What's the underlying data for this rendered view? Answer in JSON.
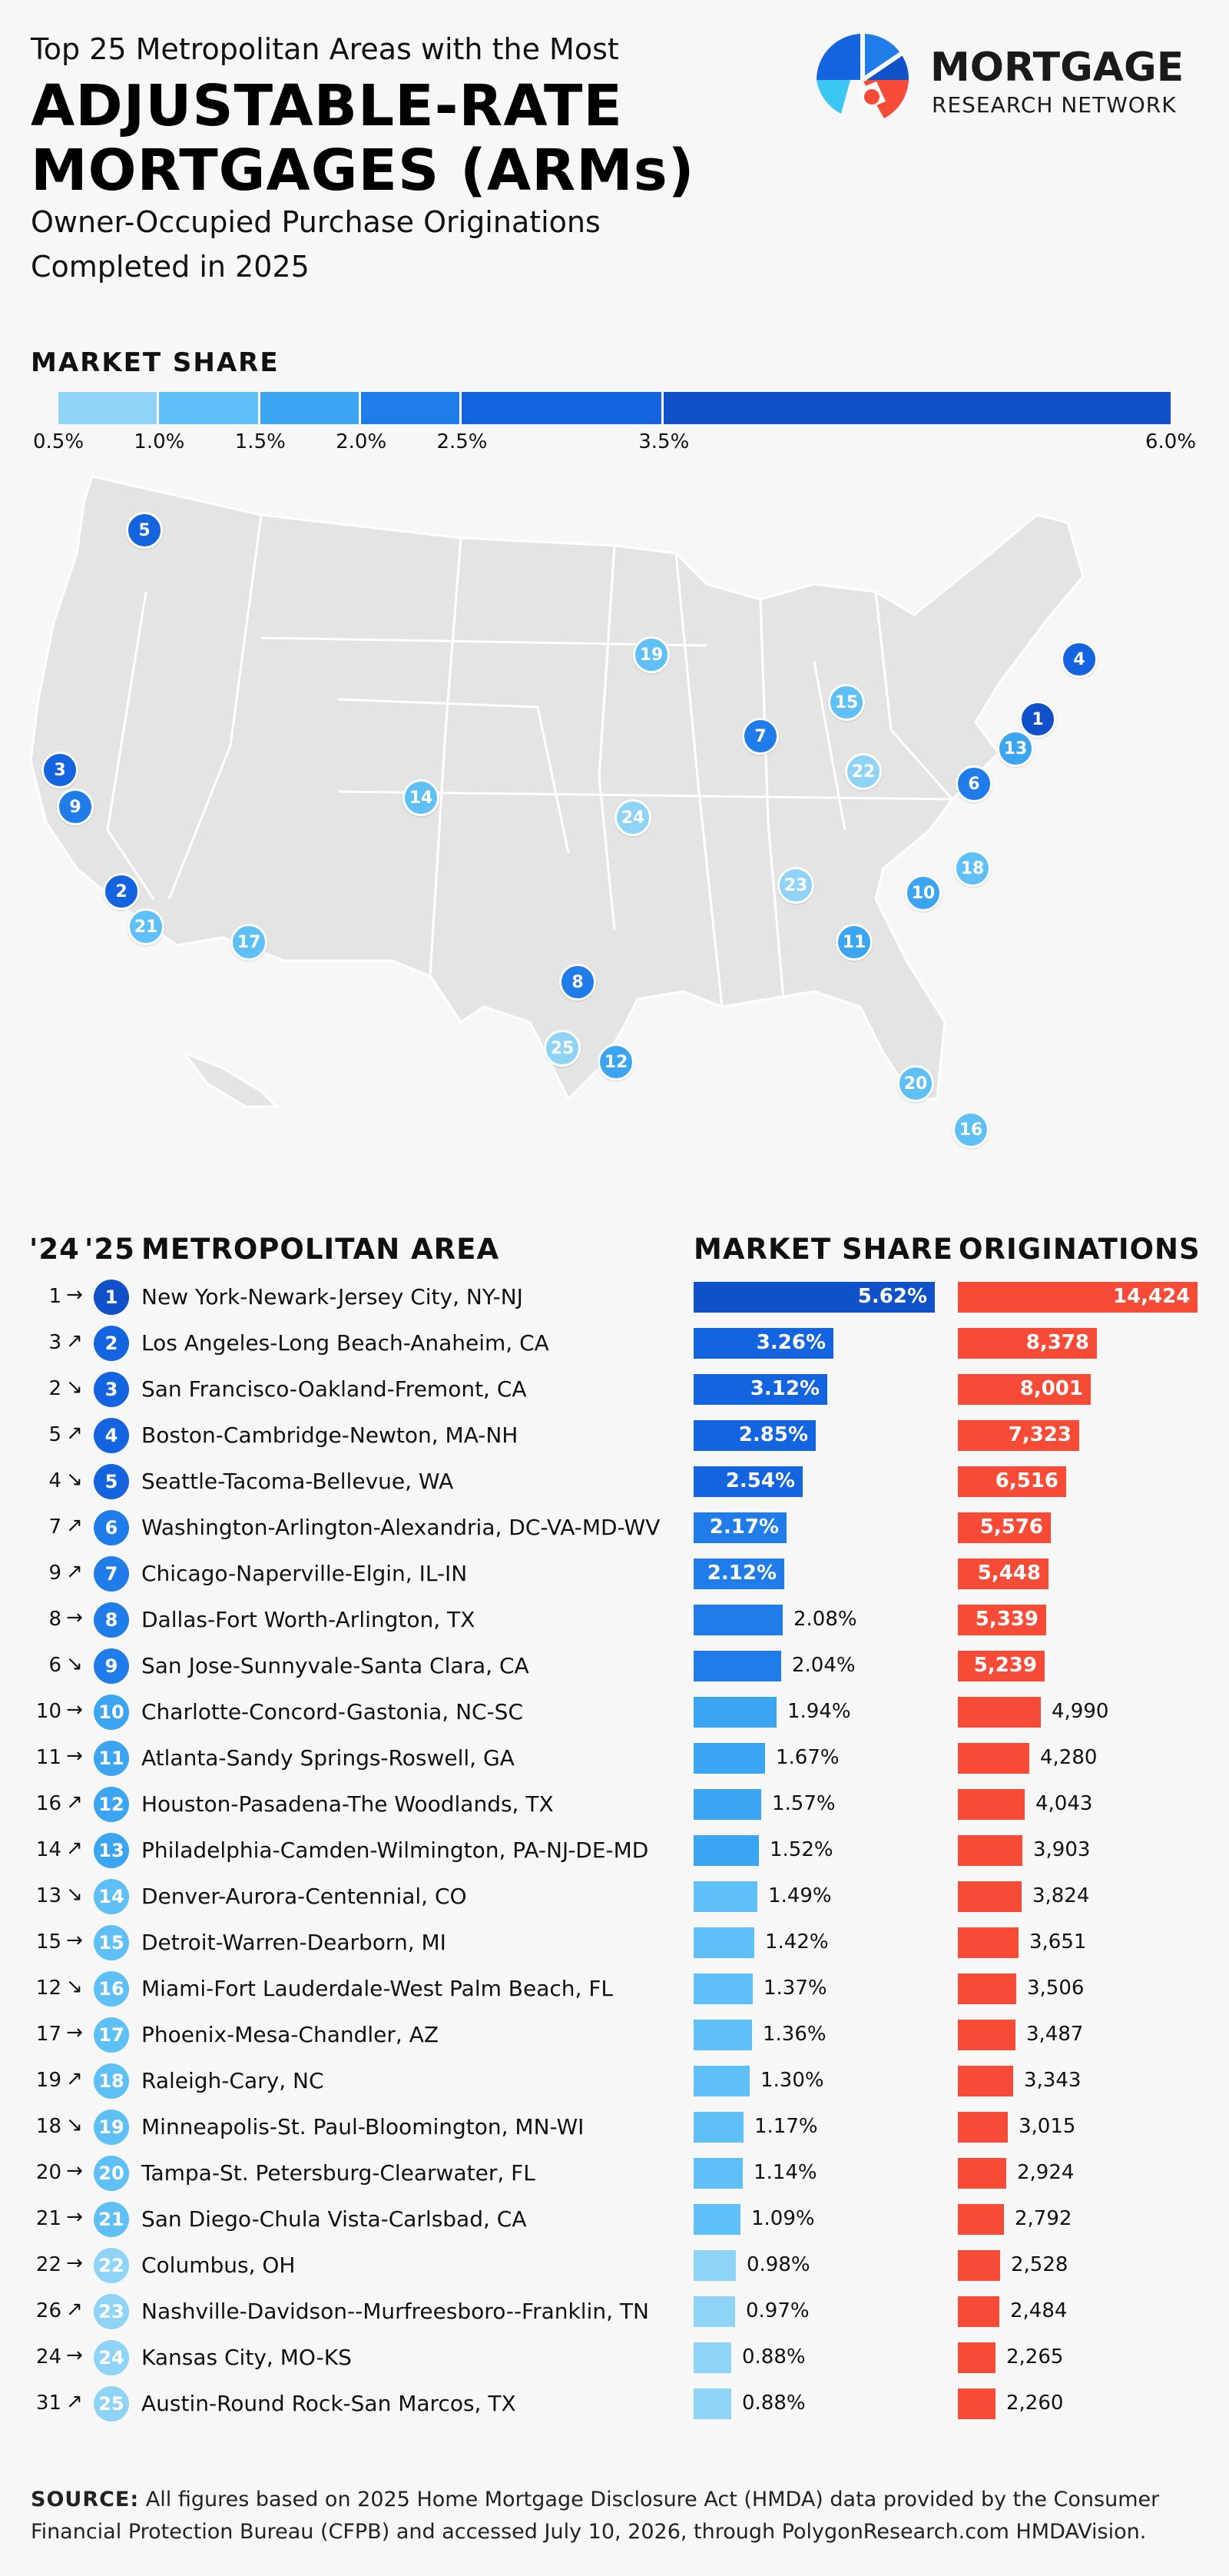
{
  "header": {
    "kicker": "Top 25 Metropolitan Areas with the Most",
    "headline": "ADJUSTABLE-RATE MORTGAGES (ARMs)",
    "subtitle": "Owner-Occupied Purchase Originations Completed in 2025"
  },
  "logo": {
    "line1": "MORTGAGE",
    "line2": "RESEARCH NETWORK"
  },
  "legend": {
    "title": "MARKET SHARE",
    "ticks": [
      "0.5%",
      "1.0%",
      "1.5%",
      "2.0%",
      "2.5%",
      "3.5%",
      "6.0%"
    ],
    "colors": [
      "#8fd3f7",
      "#5ec0f6",
      "#3ca5f2",
      "#1f7ce8",
      "#1463df",
      "#1050c8"
    ]
  },
  "table_headers": {
    "prev_year": "'24",
    "cur_year": "'25",
    "metro": "METROPOLITAN AREA",
    "share": "MARKET SHARE",
    "originations": "ORIGINATIONS"
  },
  "source": {
    "label": "SOURCE:",
    "text": "All figures based on 2025 Home Mortgage Disclosure Act (HMDA) data provided by the Consumer Financial Protection Bureau (CFPB) and accessed July 10, 2026, through PolygonResearch.com HMDAVision."
  },
  "chart_data": {
    "type": "table",
    "rows": [
      {
        "rank": "1",
        "prev": "1",
        "trend": "→",
        "metro": "New York-Newark-Jersey City, NY-NJ",
        "share": 5.62,
        "share_label": "5.62%",
        "originations": 14424,
        "orig_label": "14,424"
      },
      {
        "rank": "2",
        "prev": "3",
        "trend": "↗",
        "metro": "Los Angeles-Long Beach-Anaheim, CA",
        "share": 3.26,
        "share_label": "3.26%",
        "originations": 8378,
        "orig_label": "8,378"
      },
      {
        "rank": "3",
        "prev": "2",
        "trend": "↘",
        "metro": "San Francisco-Oakland-Fremont, CA",
        "share": 3.12,
        "share_label": "3.12%",
        "originations": 8001,
        "orig_label": "8,001"
      },
      {
        "rank": "4",
        "prev": "5",
        "trend": "↗",
        "metro": "Boston-Cambridge-Newton, MA-NH",
        "share": 2.85,
        "share_label": "2.85%",
        "originations": 7323,
        "orig_label": "7,323"
      },
      {
        "rank": "5",
        "prev": "4",
        "trend": "↘",
        "metro": "Seattle-Tacoma-Bellevue, WA",
        "share": 2.54,
        "share_label": "2.54%",
        "originations": 6516,
        "orig_label": "6,516"
      },
      {
        "rank": "6",
        "prev": "7",
        "trend": "↗",
        "metro": "Washington-Arlington-Alexandria, DC-VA-MD-WV",
        "share": 2.17,
        "share_label": "2.17%",
        "originations": 5576,
        "orig_label": "5,576"
      },
      {
        "rank": "7",
        "prev": "9",
        "trend": "↗",
        "metro": "Chicago-Naperville-Elgin, IL-IN",
        "share": 2.12,
        "share_label": "2.12%",
        "originations": 5448,
        "orig_label": "5,448"
      },
      {
        "rank": "8",
        "prev": "8",
        "trend": "→",
        "metro": "Dallas-Fort Worth-Arlington, TX",
        "share": 2.08,
        "share_label": "2.08%",
        "originations": 5339,
        "orig_label": "5,339"
      },
      {
        "rank": "9",
        "prev": "6",
        "trend": "↘",
        "metro": "San Jose-Sunnyvale-Santa Clara, CA",
        "share": 2.04,
        "share_label": "2.04%",
        "originations": 5239,
        "orig_label": "5,239"
      },
      {
        "rank": "10",
        "prev": "10",
        "trend": "→",
        "metro": "Charlotte-Concord-Gastonia, NC-SC",
        "share": 1.94,
        "share_label": "1.94%",
        "originations": 4990,
        "orig_label": "4,990"
      },
      {
        "rank": "11",
        "prev": "11",
        "trend": "→",
        "metro": "Atlanta-Sandy Springs-Roswell, GA",
        "share": 1.67,
        "share_label": "1.67%",
        "originations": 4280,
        "orig_label": "4,280"
      },
      {
        "rank": "12",
        "prev": "16",
        "trend": "↗",
        "metro": "Houston-Pasadena-The Woodlands, TX",
        "share": 1.57,
        "share_label": "1.57%",
        "originations": 4043,
        "orig_label": "4,043"
      },
      {
        "rank": "13",
        "prev": "14",
        "trend": "↗",
        "metro": "Philadelphia-Camden-Wilmington, PA-NJ-DE-MD",
        "share": 1.52,
        "share_label": "1.52%",
        "originations": 3903,
        "orig_label": "3,903"
      },
      {
        "rank": "14",
        "prev": "13",
        "trend": "↘",
        "metro": "Denver-Aurora-Centennial, CO",
        "share": 1.49,
        "share_label": "1.49%",
        "originations": 3824,
        "orig_label": "3,824"
      },
      {
        "rank": "15",
        "prev": "15",
        "trend": "→",
        "metro": "Detroit-Warren-Dearborn, MI",
        "share": 1.42,
        "share_label": "1.42%",
        "originations": 3651,
        "orig_label": "3,651"
      },
      {
        "rank": "16",
        "prev": "12",
        "trend": "↘",
        "metro": "Miami-Fort Lauderdale-West Palm Beach, FL",
        "share": 1.37,
        "share_label": "1.37%",
        "originations": 3506,
        "orig_label": "3,506"
      },
      {
        "rank": "17",
        "prev": "17",
        "trend": "→",
        "metro": "Phoenix-Mesa-Chandler, AZ",
        "share": 1.36,
        "share_label": "1.36%",
        "originations": 3487,
        "orig_label": "3,487"
      },
      {
        "rank": "18",
        "prev": "19",
        "trend": "↗",
        "metro": "Raleigh-Cary, NC",
        "share": 1.3,
        "share_label": "1.30%",
        "originations": 3343,
        "orig_label": "3,343"
      },
      {
        "rank": "19",
        "prev": "18",
        "trend": "↘",
        "metro": "Minneapolis-St. Paul-Bloomington, MN-WI",
        "share": 1.17,
        "share_label": "1.17%",
        "originations": 3015,
        "orig_label": "3,015"
      },
      {
        "rank": "20",
        "prev": "20",
        "trend": "→",
        "metro": "Tampa-St. Petersburg-Clearwater, FL",
        "share": 1.14,
        "share_label": "1.14%",
        "originations": 2924,
        "orig_label": "2,924"
      },
      {
        "rank": "21",
        "prev": "21",
        "trend": "→",
        "metro": "San Diego-Chula Vista-Carlsbad, CA",
        "share": 1.09,
        "share_label": "1.09%",
        "originations": 2792,
        "orig_label": "2,792"
      },
      {
        "rank": "22",
        "prev": "22",
        "trend": "→",
        "metro": "Columbus, OH",
        "share": 0.98,
        "share_label": "0.98%",
        "originations": 2528,
        "orig_label": "2,528"
      },
      {
        "rank": "23",
        "prev": "26",
        "trend": "↗",
        "metro": "Nashville-Davidson--Murfreesboro--Franklin, TN",
        "share": 0.97,
        "share_label": "0.97%",
        "originations": 2484,
        "orig_label": "2,484"
      },
      {
        "rank": "24",
        "prev": "24",
        "trend": "→",
        "metro": "Kansas City, MO-KS",
        "share": 0.88,
        "share_label": "0.88%",
        "originations": 2265,
        "orig_label": "2,265"
      },
      {
        "rank": "25",
        "prev": "31",
        "trend": "↗",
        "metro": "Austin-Round Rock-San Marcos, TX",
        "share": 0.88,
        "share_label": "0.88%",
        "originations": 2260,
        "orig_label": "2,260"
      }
    ]
  }
}
